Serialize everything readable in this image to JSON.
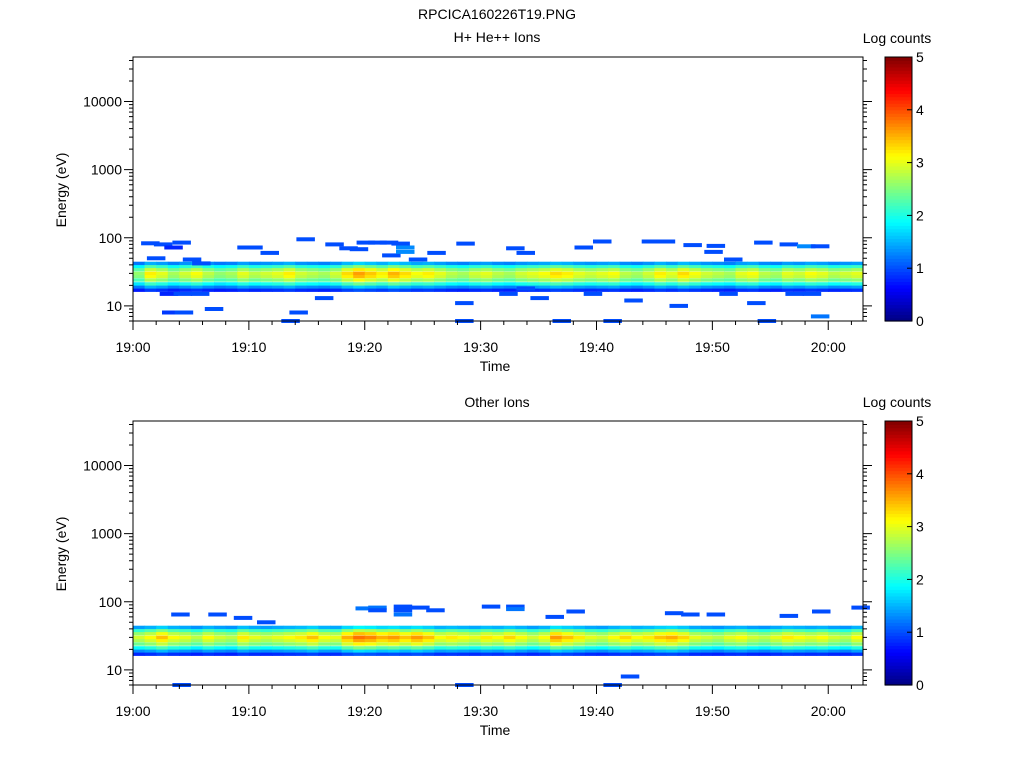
{
  "figure": {
    "title": "RPCICA160226T19.PNG"
  },
  "colorbar_range": [
    0,
    5
  ],
  "colorbar_ticks": [
    "0",
    "1",
    "2",
    "3",
    "4",
    "5"
  ],
  "chart_data": [
    {
      "type": "heatmap",
      "title": "H+ He++ Ions",
      "xlabel": "Time",
      "ylabel": "Energy (eV)",
      "colorbar_label": "Log counts",
      "y_scale": "log",
      "y_range": [
        6,
        45000
      ],
      "x_range": [
        "19:00",
        "20:03"
      ],
      "x_ticks": [
        "19:00",
        "19:10",
        "19:20",
        "19:30",
        "19:40",
        "19:50",
        "20:00"
      ],
      "y_ticks": [
        "10",
        "100",
        "1000",
        "10000"
      ],
      "band": {
        "energy_bins": [
          17,
          19,
          21,
          24,
          27,
          30,
          34,
          38,
          42
        ],
        "profile": [
          0.8,
          1.3,
          1.9,
          2.4,
          2.7,
          2.8,
          2.5,
          2.0,
          1.3
        ],
        "columns_per_min": 1,
        "time_values": [
          2.6,
          3.2,
          3.0,
          2.7,
          2.9,
          3.1,
          2.8,
          2.6,
          2.7,
          3.0,
          2.8,
          2.9,
          3.0,
          3.2,
          2.9,
          2.8,
          2.7,
          2.9,
          3.3,
          3.6,
          3.4,
          3.2,
          3.5,
          3.3,
          3.1,
          3.2,
          3.0,
          2.8,
          2.7,
          2.9,
          3.0,
          2.8,
          2.7,
          2.9,
          3.0,
          3.1,
          3.3,
          3.2,
          3.0,
          2.9,
          3.0,
          3.1,
          2.8,
          2.7,
          2.9,
          3.2,
          3.0,
          3.3,
          3.1,
          2.9,
          2.8,
          2.7,
          3.0,
          3.1,
          2.8,
          2.7,
          3.0,
          2.9,
          3.1,
          3.0,
          2.8,
          2.9,
          3.0
        ]
      },
      "sparse_points": [
        [
          0.7,
          83,
          1
        ],
        [
          1.8,
          80,
          1
        ],
        [
          2.7,
          72,
          0.8
        ],
        [
          3.4,
          85,
          1
        ],
        [
          1.2,
          50,
          1
        ],
        [
          4.3,
          48,
          1
        ],
        [
          5.1,
          42,
          1
        ],
        [
          2.3,
          15,
          0.8
        ],
        [
          3.5,
          15,
          1
        ],
        [
          5.0,
          15,
          1
        ],
        [
          2.5,
          8,
          0.9
        ],
        [
          3.6,
          8,
          1
        ],
        [
          6.2,
          9,
          1
        ],
        [
          9.0,
          72,
          1
        ],
        [
          9.6,
          72,
          1
        ],
        [
          11.0,
          60,
          1
        ],
        [
          12.8,
          6,
          1
        ],
        [
          13.5,
          8,
          1
        ],
        [
          14.1,
          95,
          1
        ],
        [
          15.7,
          13,
          1
        ],
        [
          16.6,
          80,
          1
        ],
        [
          17.8,
          70,
          1
        ],
        [
          18.7,
          68,
          1
        ],
        [
          19.3,
          85,
          1
        ],
        [
          20.3,
          85,
          1
        ],
        [
          21.3,
          85,
          1
        ],
        [
          22.3,
          82,
          1
        ],
        [
          21.5,
          55,
          1
        ],
        [
          22.7,
          72,
          1.3
        ],
        [
          22.7,
          62,
          1.3
        ],
        [
          23.8,
          48,
          1
        ],
        [
          25.4,
          60,
          1
        ],
        [
          27.9,
          82,
          1
        ],
        [
          27.8,
          11,
          1
        ],
        [
          27.8,
          6,
          1
        ],
        [
          32.2,
          70,
          1
        ],
        [
          33.1,
          60,
          1
        ],
        [
          31.6,
          15,
          1
        ],
        [
          33.1,
          18,
          1
        ],
        [
          34.3,
          13,
          1
        ],
        [
          36.2,
          6,
          1
        ],
        [
          38.1,
          72,
          1
        ],
        [
          39.7,
          88,
          1
        ],
        [
          38.9,
          15,
          1
        ],
        [
          40.6,
          6,
          1
        ],
        [
          42.4,
          12,
          1
        ],
        [
          43.9,
          88,
          1
        ],
        [
          45.2,
          88,
          1
        ],
        [
          46.3,
          10,
          1
        ],
        [
          47.5,
          78,
          1
        ],
        [
          49.5,
          76,
          1
        ],
        [
          49.3,
          62,
          1
        ],
        [
          50.6,
          15,
          1
        ],
        [
          51.0,
          48,
          1
        ],
        [
          53.6,
          85,
          1
        ],
        [
          55.8,
          80,
          1
        ],
        [
          57.3,
          75,
          1.3
        ],
        [
          58.5,
          75,
          1
        ],
        [
          53.0,
          11,
          1
        ],
        [
          53.9,
          6,
          1
        ],
        [
          56.3,
          15,
          1
        ],
        [
          57.8,
          15,
          1
        ],
        [
          58.5,
          7,
          1.2
        ]
      ]
    },
    {
      "type": "heatmap",
      "title": "Other Ions",
      "xlabel": "Time",
      "ylabel": "Energy (eV)",
      "colorbar_label": "Log counts",
      "y_scale": "log",
      "y_range": [
        6,
        45000
      ],
      "x_range": [
        "19:00",
        "20:03"
      ],
      "x_ticks": [
        "19:00",
        "19:10",
        "19:20",
        "19:30",
        "19:40",
        "19:50",
        "20:00"
      ],
      "y_ticks": [
        "10",
        "100",
        "1000",
        "10000"
      ],
      "band": {
        "energy_bins": [
          17,
          19,
          21,
          24,
          27,
          30,
          34,
          38,
          42
        ],
        "profile": [
          0.8,
          1.3,
          1.9,
          2.4,
          2.7,
          2.9,
          2.6,
          2.1,
          1.4
        ],
        "columns_per_min": 1,
        "time_values": [
          2.8,
          3.0,
          3.3,
          3.0,
          2.9,
          2.7,
          3.0,
          2.8,
          2.7,
          3.1,
          2.9,
          2.8,
          2.9,
          3.0,
          3.1,
          3.3,
          3.0,
          2.9,
          3.4,
          3.7,
          3.6,
          3.4,
          3.5,
          3.3,
          3.5,
          3.3,
          3.0,
          3.1,
          3.0,
          2.9,
          3.1,
          3.0,
          3.2,
          3.0,
          2.8,
          3.0,
          3.5,
          3.3,
          3.1,
          2.9,
          2.8,
          3.0,
          3.2,
          3.0,
          3.1,
          3.3,
          3.4,
          3.2,
          2.9,
          2.8,
          2.7,
          2.9,
          3.0,
          2.8,
          2.7,
          2.9,
          3.1,
          3.0,
          2.9,
          3.0,
          2.8,
          2.7,
          3.0
        ]
      },
      "sparse_points": [
        [
          3.3,
          65,
          1
        ],
        [
          6.5,
          65,
          1
        ],
        [
          8.7,
          58,
          1
        ],
        [
          10.7,
          50,
          1
        ],
        [
          19.2,
          80,
          1.2
        ],
        [
          20.3,
          82,
          1.2
        ],
        [
          20.3,
          75,
          1
        ],
        [
          22.5,
          85,
          1
        ],
        [
          22.5,
          75,
          1
        ],
        [
          22.5,
          65,
          1.2
        ],
        [
          24.0,
          82,
          1
        ],
        [
          25.3,
          75,
          1
        ],
        [
          27.8,
          6,
          1
        ],
        [
          30.1,
          85,
          1
        ],
        [
          32.2,
          85,
          1
        ],
        [
          32.2,
          78,
          1.2
        ],
        [
          35.6,
          60,
          1
        ],
        [
          37.4,
          72,
          1
        ],
        [
          42.1,
          8,
          1
        ],
        [
          40.6,
          6,
          1
        ],
        [
          45.9,
          68,
          1
        ],
        [
          47.3,
          65,
          1
        ],
        [
          49.5,
          65,
          1
        ],
        [
          55.8,
          62,
          1
        ],
        [
          58.6,
          72,
          1
        ],
        [
          62.0,
          82,
          1
        ],
        [
          3.4,
          6,
          1
        ]
      ]
    }
  ]
}
